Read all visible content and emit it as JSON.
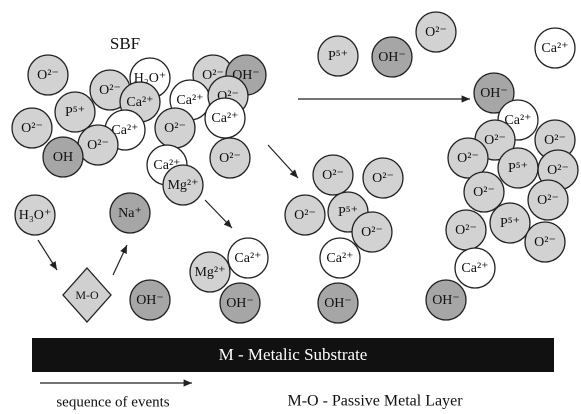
{
  "title": "SBF",
  "ions": [
    "O²⁻",
    "H₃O⁺",
    "O²⁻",
    "OH⁻",
    "O²⁻",
    "Ca²⁺",
    "P⁵⁺",
    "Ca²⁺",
    "O²⁻",
    "O²⁻",
    "Ca²⁺",
    "O²⁻",
    "Ca²⁺",
    "O²⁻",
    "OH",
    "O²⁻",
    "Ca²⁺",
    "Mg²⁺",
    "P⁵⁺",
    "OH⁻",
    "O²⁻",
    "Ca²⁺",
    "OH⁻",
    "Ca²⁺",
    "O²⁻",
    "O²⁻",
    "O²⁻",
    "P⁵⁺",
    "O²⁻",
    "O²⁻",
    "O²⁻",
    "O²⁻",
    "P⁵⁺",
    "O²⁻",
    "Ca²⁺",
    "OH⁻",
    "O²⁻",
    "O²⁻",
    "O²⁻",
    "P⁵⁺",
    "O²⁻",
    "Ca²⁺",
    "OH⁻",
    "H₃O⁺",
    "Na⁺",
    "OH⁻",
    "Mg²⁺",
    "Ca²⁺",
    "OH⁻"
  ],
  "passive_layer": "M-O",
  "substrate": "M - Metalic Substrate",
  "legend": {
    "arrow": "sequence of events",
    "abbreviation": "M-O - Passive Metal Layer"
  }
}
